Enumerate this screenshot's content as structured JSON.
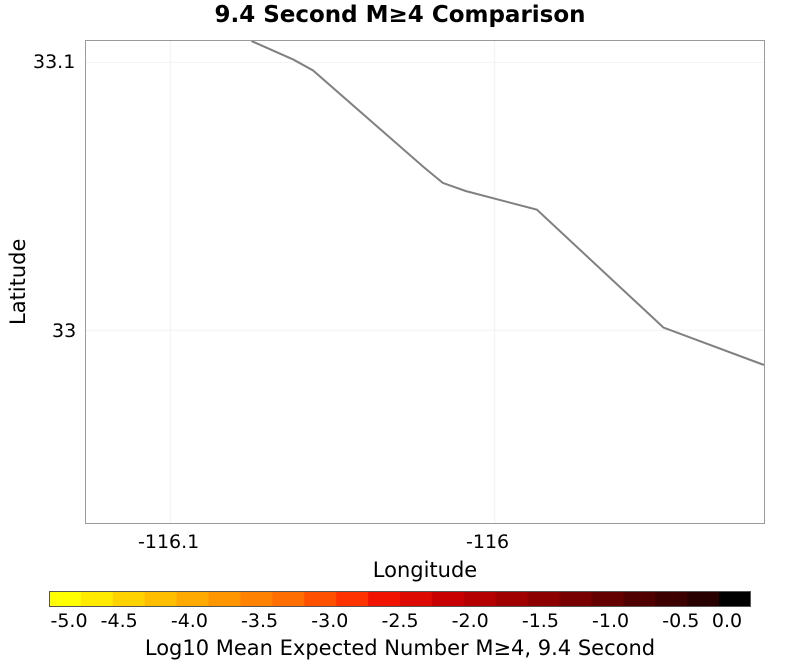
{
  "title": "9.4 Second M≥4 Comparison",
  "map": {
    "x_axis_label": "Longitude",
    "y_axis_label": "Latitude",
    "x_ticks": [
      "-116.1",
      "-116"
    ],
    "y_ticks": [
      "33.1",
      "33"
    ],
    "x_range": [
      -116.126,
      -115.917
    ],
    "y_range": [
      32.928,
      33.108
    ],
    "line_color": "#808080",
    "coastline": [
      [
        -116.075,
        33.108
      ],
      [
        -116.062,
        33.101
      ],
      [
        -116.056,
        33.097
      ],
      [
        -116.022,
        33.061
      ],
      [
        -116.016,
        33.055
      ],
      [
        -116.009,
        33.052
      ],
      [
        -115.987,
        33.045
      ],
      [
        -115.948,
        33.001
      ],
      [
        -115.917,
        32.987
      ]
    ]
  },
  "colorbar": {
    "label": "Log10 Mean Expected Number M≥4, 9.4 Second",
    "ticks": [
      "-5.0",
      "-4.5",
      "-4.0",
      "-3.5",
      "-3.0",
      "-2.5",
      "-2.0",
      "-1.5",
      "-1.0",
      "-0.5",
      "0.0"
    ],
    "min": -5.0,
    "max": 0.0,
    "colors": [
      "#ffff00",
      "#ffea00",
      "#ffd200",
      "#ffbe00",
      "#ffaa00",
      "#ff9600",
      "#ff8200",
      "#ff6e00",
      "#ff5000",
      "#ff3200",
      "#f01400",
      "#dc0a00",
      "#c80000",
      "#b40000",
      "#a00000",
      "#8c0000",
      "#780000",
      "#640000",
      "#500000",
      "#3c0000",
      "#280000",
      "#000000"
    ]
  }
}
